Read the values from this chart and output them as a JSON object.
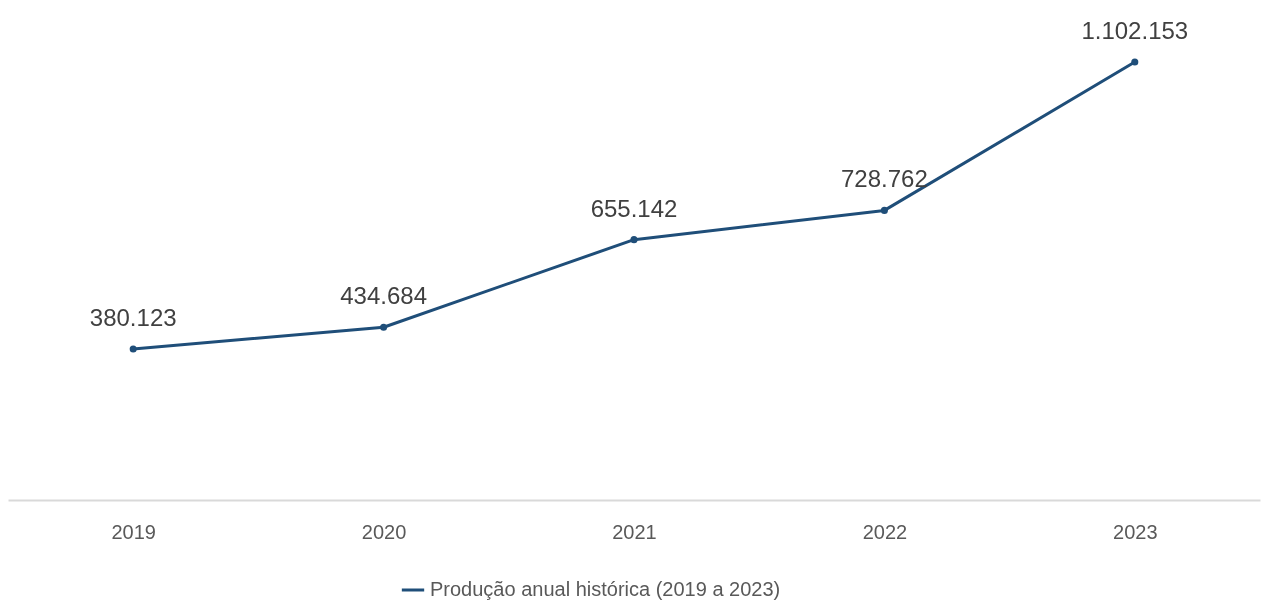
{
  "chart_data": {
    "type": "line",
    "categories": [
      "2019",
      "2020",
      "2021",
      "2022",
      "2023"
    ],
    "series": [
      {
        "name": "Produção anual histórica (2019 a 2023)",
        "color": "#1f4e79",
        "values": [
          380123,
          434684,
          655142,
          728762,
          1102153
        ],
        "value_labels": [
          "380.123",
          "434.684",
          "655.142",
          "728.762",
          "1.102.153"
        ]
      }
    ],
    "tick_labels": "x",
    "grid": false,
    "legend": "bottom",
    "marker": "circle",
    "line_style": "solid"
  }
}
